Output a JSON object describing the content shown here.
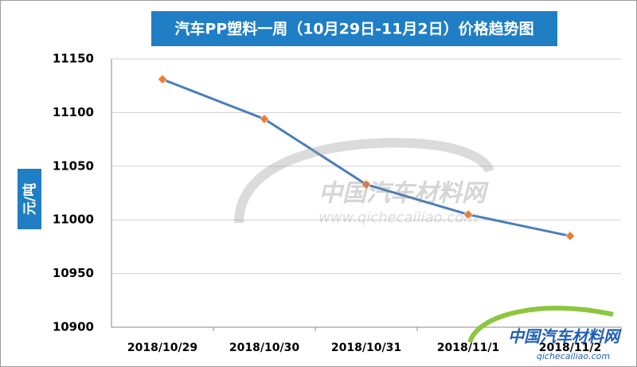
{
  "chart_data": {
    "type": "line",
    "title": "汽车PP塑料一周（10月29日-11月2日）价格趋势图",
    "y_label": "元/吨",
    "categories": [
      "2018/10/29",
      "2018/10/30",
      "2018/10/31",
      "2018/11/1",
      "2018/11/2"
    ],
    "series": [
      {
        "color": "#4a7ebb",
        "marker_color": "#ed7d31",
        "values": [
          11131,
          11094,
          11033,
          11005,
          10985
        ]
      }
    ],
    "ylim": [
      10900,
      11150
    ],
    "yticks": [
      10900,
      10950,
      11000,
      11050,
      11100,
      11150
    ],
    "grid": true,
    "watermark": {
      "name": "中国汽车材料网",
      "url": "www.qichecailiao.com"
    },
    "logo": {
      "name": "中国汽车材料网",
      "url": "qichecailiao.com"
    }
  }
}
